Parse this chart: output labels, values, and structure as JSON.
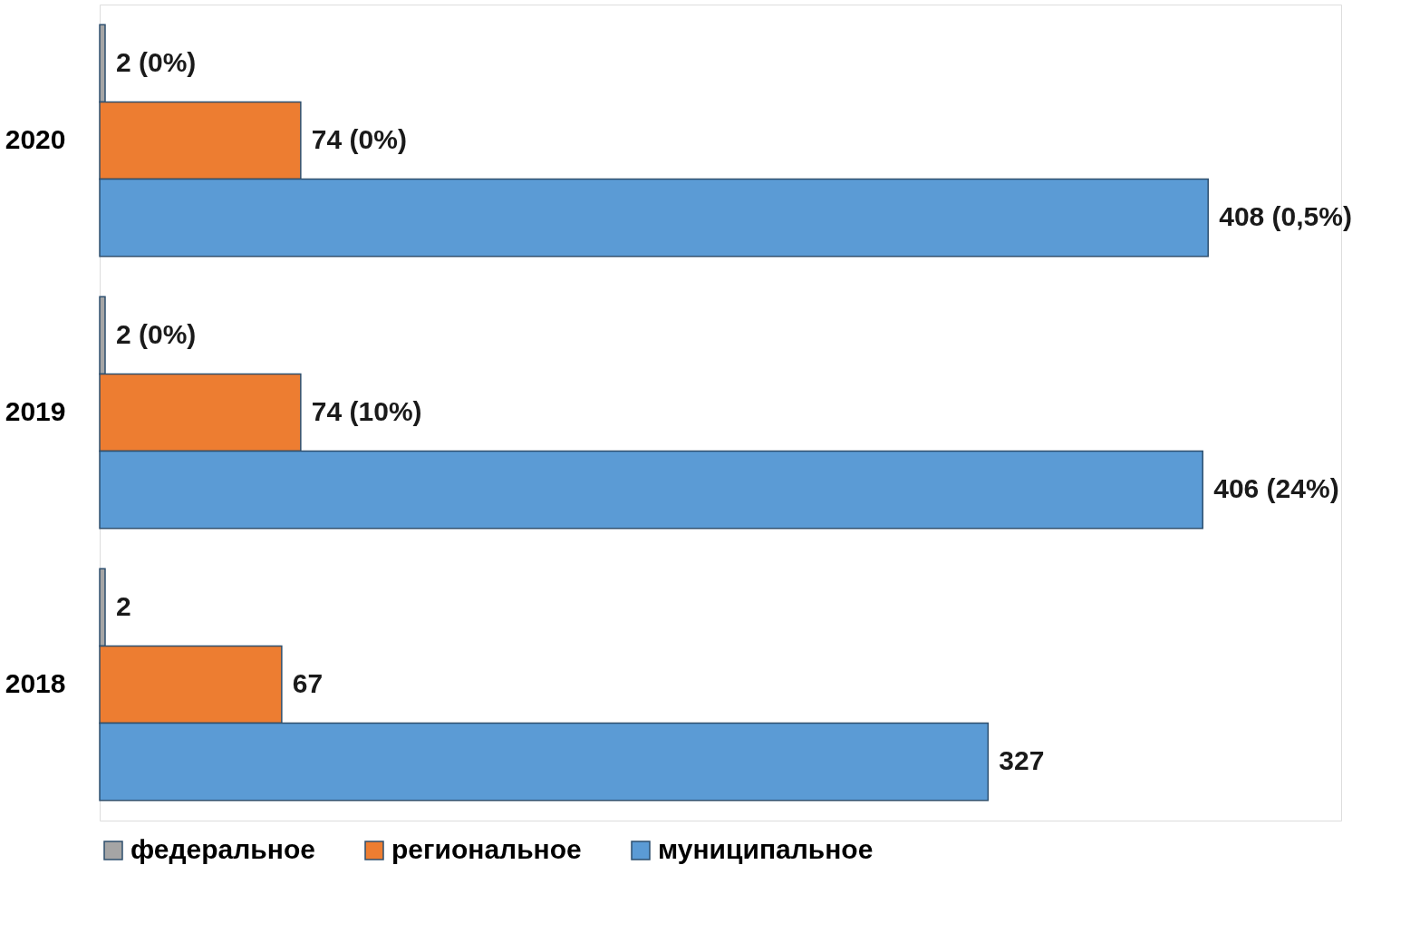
{
  "chart_data": {
    "type": "bar",
    "orientation": "horizontal",
    "categories": [
      "2020",
      "2019",
      "2018"
    ],
    "series": [
      {
        "name": "федеральное",
        "color": "#a5a5a5",
        "values": [
          2,
          2,
          2
        ],
        "value_labels": [
          "2 (0%)",
          "2 (0%)",
          "2"
        ]
      },
      {
        "name": "региональное",
        "color": "#ed7d31",
        "values": [
          74,
          74,
          67
        ],
        "value_labels": [
          "74 (0%)",
          "74 (10%)",
          "67"
        ]
      },
      {
        "name": "муниципальное",
        "color": "#5b9bd5",
        "values": [
          408,
          406,
          327
        ],
        "value_labels": [
          "408 (0,5%)",
          "406 (24%)",
          "327"
        ]
      }
    ],
    "legend": "bottom",
    "tick_labels": "y"
  }
}
